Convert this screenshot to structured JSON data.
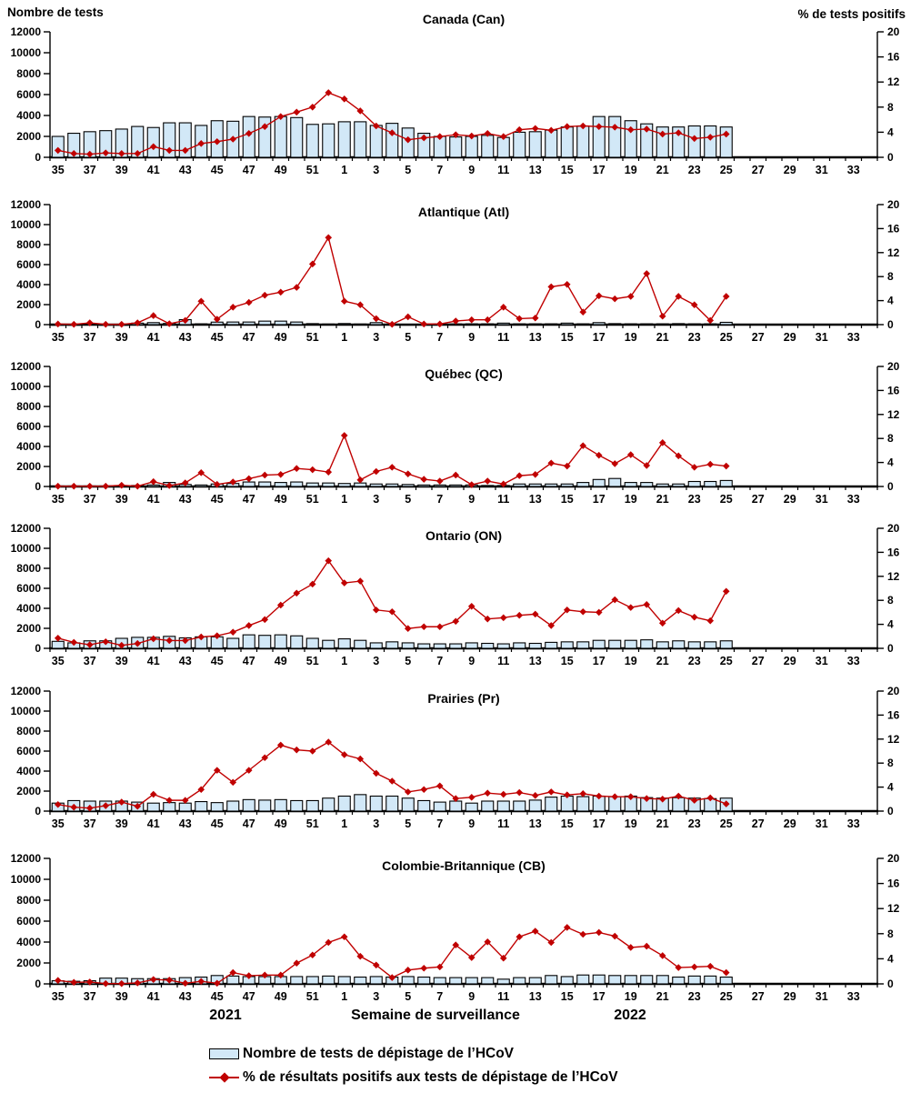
{
  "header": {
    "left_axis_title": "Nombre de tests",
    "right_axis_title": "% de tests positifs"
  },
  "footer": {
    "year_left": "2021",
    "x_axis_label": "Semaine de surveillance",
    "year_right": "2022"
  },
  "legend": {
    "items": [
      {
        "type": "bar",
        "label": "Nombre de tests de dépistage de l’HCoV"
      },
      {
        "type": "line",
        "label": "% de résultats positifs aux tests de dépistage de l’HCoV"
      }
    ]
  },
  "colors": {
    "bar_fill": "#D2E8F7",
    "bar_stroke": "#000000",
    "line": "#C00000",
    "axis": "#000000"
  },
  "x_axis": {
    "label": "Semaine de surveillance",
    "tick_labels": [
      "35",
      "37",
      "39",
      "41",
      "43",
      "45",
      "47",
      "49",
      "51",
      "1",
      "3",
      "5",
      "7",
      "9",
      "11",
      "13",
      "15",
      "17",
      "19",
      "21",
      "23",
      "25",
      "27",
      "29",
      "31",
      "33"
    ],
    "data_weeks": [
      "35",
      "36",
      "37",
      "38",
      "39",
      "40",
      "41",
      "42",
      "43",
      "44",
      "45",
      "46",
      "47",
      "48",
      "49",
      "50",
      "51",
      "52",
      "1",
      "2",
      "3",
      "4",
      "5",
      "6",
      "7",
      "8",
      "9",
      "10",
      "11",
      "12",
      "13",
      "14",
      "15",
      "16",
      "17",
      "18",
      "19",
      "20",
      "21",
      "22",
      "23",
      "24",
      "25"
    ],
    "total_slots": 52
  },
  "y_axis_left": {
    "title": "Nombre de tests",
    "ticks": [
      0,
      2000,
      4000,
      6000,
      8000,
      10000,
      12000
    ],
    "max": 12000
  },
  "y_axis_right": {
    "title": "% de tests positifs",
    "ticks": [
      0,
      4,
      8,
      12,
      16,
      20
    ],
    "max": 20
  },
  "chart_data": [
    {
      "type": "bar+line",
      "title": "Canada (Can)",
      "ylim_left": [
        0,
        12000
      ],
      "ylim_right": [
        0,
        20
      ],
      "series": [
        {
          "name": "Nombre de tests de dépistage de l’HCoV",
          "axis": "left",
          "values": [
            2000,
            2300,
            2450,
            2550,
            2700,
            2950,
            2850,
            3300,
            3300,
            3050,
            3500,
            3450,
            3900,
            3850,
            3900,
            3800,
            3150,
            3200,
            3400,
            3400,
            3050,
            3250,
            2800,
            2300,
            2000,
            1950,
            2000,
            2100,
            1900,
            2400,
            2450,
            2600,
            2900,
            3000,
            3900,
            3900,
            3500,
            3200,
            2900,
            2900,
            3000,
            3000,
            2900
          ]
        },
        {
          "name": "% de résultats positifs aux tests de dépistage de l’HCoV",
          "axis": "right",
          "values": [
            1.1,
            0.6,
            0.5,
            0.7,
            0.6,
            0.6,
            1.7,
            1.1,
            1.1,
            2.2,
            2.5,
            2.9,
            3.8,
            4.9,
            6.5,
            7.2,
            8.0,
            10.3,
            9.3,
            7.4,
            5.0,
            3.9,
            2.8,
            3.1,
            3.3,
            3.6,
            3.4,
            3.8,
            3.3,
            4.4,
            4.6,
            4.3,
            4.9,
            5.0,
            4.9,
            4.8,
            4.4,
            4.5,
            3.7,
            3.9,
            3.0,
            3.2,
            3.7
          ]
        }
      ]
    },
    {
      "type": "bar+line",
      "title": "Atlantique (Atl)",
      "ylim_left": [
        0,
        12000
      ],
      "ylim_right": [
        0,
        20
      ],
      "series": [
        {
          "name": "Nombre de tests de dépistage de l’HCoV",
          "axis": "left",
          "values": [
            30,
            30,
            60,
            30,
            30,
            150,
            200,
            120,
            500,
            80,
            250,
            260,
            260,
            350,
            350,
            260,
            100,
            60,
            110,
            60,
            200,
            50,
            40,
            40,
            60,
            70,
            80,
            80,
            150,
            80,
            80,
            80,
            150,
            80,
            200,
            100,
            80,
            80,
            80,
            100,
            80,
            80,
            230
          ]
        },
        {
          "name": "% de résultats positifs aux tests de dépistage de l’HCoV",
          "axis": "right",
          "values": [
            0.1,
            0.05,
            0.3,
            0.05,
            0.05,
            0.3,
            1.5,
            0.15,
            0.7,
            3.9,
            0.9,
            2.9,
            3.7,
            4.9,
            5.4,
            6.2,
            10.1,
            14.5,
            3.9,
            3.3,
            1.0,
            0.05,
            1.3,
            0.1,
            0.1,
            0.6,
            0.8,
            0.8,
            2.9,
            1.0,
            1.1,
            6.3,
            6.7,
            2.1,
            4.8,
            4.3,
            4.7,
            8.5,
            1.4,
            4.7,
            3.3,
            0.7,
            4.7
          ]
        }
      ]
    },
    {
      "type": "bar+line",
      "title": "Québec (QC)",
      "ylim_left": [
        0,
        12000
      ],
      "ylim_right": [
        0,
        20
      ],
      "series": [
        {
          "name": "Nombre de tests de dépistage de l’HCoV",
          "axis": "left",
          "values": [
            50,
            50,
            50,
            50,
            80,
            100,
            150,
            400,
            200,
            150,
            250,
            300,
            450,
            450,
            400,
            450,
            350,
            350,
            300,
            350,
            250,
            250,
            200,
            150,
            150,
            150,
            150,
            100,
            100,
            250,
            250,
            250,
            250,
            400,
            700,
            800,
            400,
            400,
            250,
            250,
            500,
            500,
            600
          ]
        },
        {
          "name": "% de résultats positifs aux tests de dépistage de l’HCoV",
          "axis": "right",
          "values": [
            0.05,
            0.05,
            0.05,
            0.05,
            0.2,
            0.05,
            0.8,
            0.15,
            0.6,
            2.3,
            0.35,
            0.75,
            1.3,
            1.9,
            2.0,
            3.0,
            2.8,
            2.4,
            8.5,
            1.1,
            2.5,
            3.2,
            2.1,
            1.2,
            0.9,
            1.9,
            0.3,
            0.9,
            0.4,
            1.8,
            2.0,
            3.9,
            3.4,
            6.8,
            5.2,
            3.8,
            5.3,
            3.5,
            7.3,
            5.1,
            3.2,
            3.7,
            3.4
          ]
        }
      ]
    },
    {
      "type": "bar+line",
      "title": "Ontario (ON)",
      "ylim_left": [
        0,
        12000
      ],
      "ylim_right": [
        0,
        20
      ],
      "series": [
        {
          "name": "Nombre de tests de dépistage de l’HCoV",
          "axis": "left",
          "values": [
            700,
            550,
            750,
            750,
            1000,
            1100,
            1100,
            1200,
            1050,
            1150,
            1150,
            1000,
            1350,
            1300,
            1350,
            1250,
            1000,
            800,
            950,
            800,
            550,
            650,
            550,
            450,
            450,
            450,
            550,
            500,
            450,
            550,
            500,
            600,
            650,
            650,
            800,
            800,
            800,
            850,
            650,
            750,
            650,
            650,
            750
          ]
        },
        {
          "name": "% de résultats positifs aux tests de dépistage de l’HCoV",
          "axis": "right",
          "values": [
            1.7,
            1.0,
            0.6,
            1.1,
            0.5,
            0.8,
            1.6,
            1.3,
            1.3,
            1.9,
            2.1,
            2.7,
            3.8,
            4.8,
            7.2,
            9.2,
            10.7,
            14.6,
            10.9,
            11.2,
            6.4,
            6.1,
            3.3,
            3.6,
            3.6,
            4.5,
            7.0,
            4.9,
            5.1,
            5.5,
            5.7,
            3.8,
            6.4,
            6.1,
            6.0,
            8.1,
            6.8,
            7.3,
            4.2,
            6.3,
            5.2,
            4.6,
            9.5
          ]
        }
      ]
    },
    {
      "type": "bar+line",
      "title": "Prairies (Pr)",
      "ylim_left": [
        0,
        12000
      ],
      "ylim_right": [
        0,
        20
      ],
      "series": [
        {
          "name": "Nombre de tests de dépistage de l’HCoV",
          "axis": "left",
          "values": [
            800,
            1050,
            1000,
            1000,
            1000,
            900,
            800,
            850,
            800,
            950,
            850,
            1000,
            1150,
            1100,
            1150,
            1050,
            1050,
            1300,
            1500,
            1650,
            1500,
            1500,
            1300,
            1050,
            900,
            1000,
            800,
            1000,
            1000,
            1000,
            1100,
            1400,
            1500,
            1450,
            1500,
            1450,
            1500,
            1350,
            1300,
            1350,
            1300,
            1250,
            1300
          ]
        },
        {
          "name": "% de résultats positifs aux tests de dépistage de l’HCoV",
          "axis": "right",
          "values": [
            1.1,
            0.65,
            0.5,
            0.9,
            1.5,
            0.8,
            2.8,
            1.8,
            1.8,
            3.6,
            6.8,
            4.8,
            6.8,
            8.9,
            11.0,
            10.2,
            10.0,
            11.5,
            9.4,
            8.7,
            6.3,
            5.0,
            3.2,
            3.6,
            4.2,
            2.1,
            2.3,
            3.0,
            2.8,
            3.1,
            2.6,
            3.2,
            2.7,
            2.9,
            2.5,
            2.4,
            2.4,
            2.1,
            2.0,
            2.5,
            1.8,
            2.2,
            1.2
          ]
        }
      ]
    },
    {
      "type": "bar+line",
      "title": "Colombie-Britannique (CB)",
      "ylim_left": [
        0,
        12000
      ],
      "ylim_right": [
        0,
        20
      ],
      "series": [
        {
          "name": "Nombre de tests de dépistage de l’HCoV",
          "axis": "left",
          "values": [
            300,
            250,
            300,
            550,
            550,
            500,
            500,
            500,
            600,
            650,
            800,
            750,
            700,
            700,
            700,
            700,
            700,
            750,
            700,
            650,
            700,
            650,
            700,
            650,
            600,
            600,
            600,
            600,
            450,
            600,
            600,
            800,
            700,
            850,
            850,
            800,
            800,
            800,
            800,
            650,
            750,
            750,
            650
          ]
        },
        {
          "name": "% de résultats positifs aux tests de dépistage de l’HCoV",
          "axis": "right",
          "values": [
            0.55,
            0.25,
            0.3,
            0.05,
            0.05,
            0.15,
            0.7,
            0.6,
            0.1,
            0.4,
            0.1,
            1.8,
            1.3,
            1.4,
            1.4,
            3.3,
            4.6,
            6.6,
            7.5,
            4.4,
            3.0,
            1.0,
            2.2,
            2.5,
            2.7,
            6.2,
            4.2,
            6.7,
            4.1,
            7.5,
            8.4,
            6.6,
            9.0,
            7.9,
            8.2,
            7.6,
            5.8,
            6.0,
            4.5,
            2.6,
            2.7,
            2.8,
            1.8
          ]
        }
      ]
    }
  ]
}
